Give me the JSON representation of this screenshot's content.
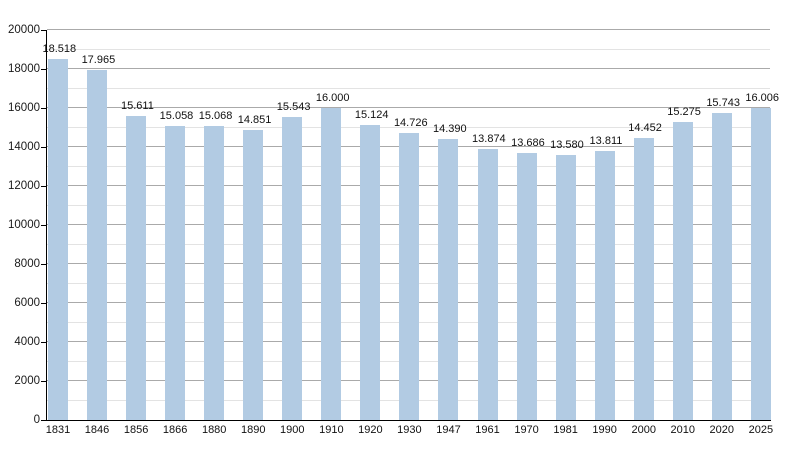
{
  "chart_data": {
    "type": "bar",
    "title": "",
    "xlabel": "",
    "ylabel": "",
    "categories": [
      "1831",
      "1846",
      "1856",
      "1866",
      "1880",
      "1890",
      "1900",
      "1910",
      "1920",
      "1930",
      "1947",
      "1961",
      "1970",
      "1981",
      "1990",
      "2000",
      "2010",
      "2020",
      "2025"
    ],
    "values": [
      18518,
      17965,
      15611,
      15058,
      15068,
      14851,
      15543,
      16000,
      15124,
      14726,
      14390,
      13874,
      13686,
      13580,
      13811,
      14452,
      15275,
      15743,
      16006
    ],
    "value_labels": [
      "18.518",
      "17.965",
      "15.611",
      "15.058",
      "15.068",
      "14.851",
      "15.543",
      "16.000",
      "15.124",
      "14.726",
      "14.390",
      "13.874",
      "13.686",
      "13.580",
      "13.811",
      "14.452",
      "15.275",
      "15.743",
      "16.006"
    ],
    "ylim": [
      0,
      20000
    ],
    "ytick_interval": 2000,
    "minor_grid_interval": 1000,
    "ytick_labels": [
      "0",
      "2000",
      "4000",
      "6000",
      "8000",
      "10000",
      "12000",
      "14000",
      "16000",
      "18000",
      "20000"
    ],
    "grid": "horizontal major and minor gridlines",
    "legend": "none",
    "colors": {
      "bar_fill": "#b2cbe3",
      "major_gridline": "#aaaaaa",
      "minor_gridline": "#e3e3e3",
      "axis": "#000000",
      "text": "#1a1a1a",
      "background": "#ffffff"
    }
  }
}
